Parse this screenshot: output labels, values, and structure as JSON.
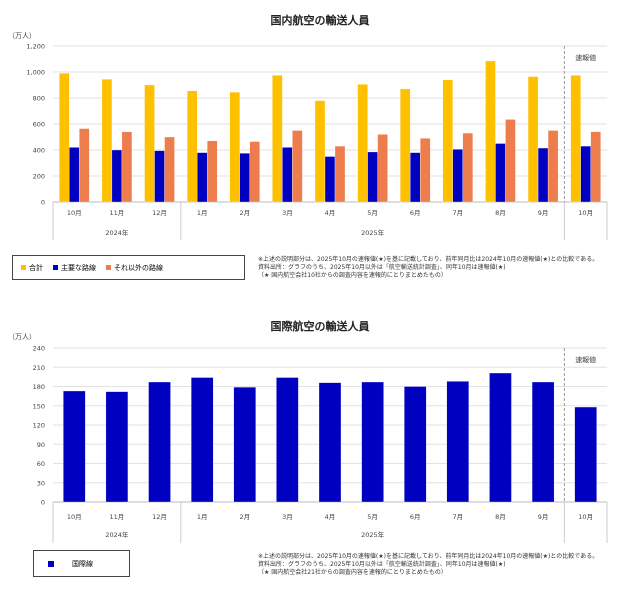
{
  "chart_data": [
    {
      "type": "bar",
      "title": "国内航空の輸送人員",
      "ylabel": "（万人）",
      "ylim": [
        0,
        1200
      ],
      "yticks": [
        "0",
        "200",
        "400",
        "600",
        "800",
        "1,000",
        "1,200"
      ],
      "ytick_values": [
        0,
        200,
        400,
        600,
        800,
        1000,
        1200
      ],
      "categories": [
        "10月",
        "11月",
        "12月",
        "1月",
        "2月",
        "3月",
        "4月",
        "5月",
        "6月",
        "7月",
        "8月",
        "9月",
        "10月"
      ],
      "years": [
        "2024年",
        "2025年"
      ],
      "preliminary_label": "速報値",
      "series": [
        {
          "name": "合計",
          "color": "#FFC000",
          "values": [
            990,
            945,
            900,
            855,
            845,
            975,
            780,
            905,
            870,
            940,
            1085,
            965,
            975
          ]
        },
        {
          "name": "主要な路線",
          "color": "#0000C0",
          "values": [
            420,
            400,
            395,
            380,
            375,
            420,
            350,
            385,
            380,
            405,
            450,
            415,
            430
          ]
        },
        {
          "name": "それ以外の路線",
          "color": "#ED7D4C",
          "values": [
            565,
            540,
            500,
            470,
            465,
            550,
            430,
            520,
            490,
            530,
            635,
            550,
            540
          ]
        }
      ],
      "legend": "bottom-left",
      "notes": [
        "※上述の説明部分は、2025年10月の速報値(★)を基に記載しており、前年同月比は2024年10月の速報値(★)との比較である。",
        "資料出所：グラフのうち、2025年10月以外は「航空輸送統計調査」、同年10月は速報値(★)",
        "（★ 国内航空会社10社からの調査内容を速報的にとりまとめたもの）"
      ]
    },
    {
      "type": "bar",
      "title": "国際航空の輸送人員",
      "ylabel": "（万人）",
      "ylim": [
        0,
        240
      ],
      "yticks": [
        "0",
        "30",
        "60",
        "90",
        "120",
        "150",
        "180",
        "210",
        "240"
      ],
      "ytick_values": [
        0,
        30,
        60,
        90,
        120,
        150,
        180,
        210,
        240
      ],
      "categories": [
        "10月",
        "11月",
        "12月",
        "1月",
        "2月",
        "3月",
        "4月",
        "5月",
        "6月",
        "7月",
        "8月",
        "9月",
        "10月"
      ],
      "years": [
        "2024年",
        "2025年"
      ],
      "preliminary_label": "速報値",
      "series": [
        {
          "name": "国際線",
          "color": "#0000C0",
          "values": [
            173,
            172,
            187,
            194,
            179,
            194,
            186,
            187,
            180,
            188,
            201,
            187,
            148
          ]
        }
      ],
      "legend": "bottom-left",
      "notes": [
        "※上述の説明部分は、2025年10月の速報値(★)を基に記載しており、前年同月比は2024年10月の速報値(★)との比較である。",
        "資料出所：グラフのうち、2025年10月以外は「航空輸送統計調査」、同年10月は速報値(★)",
        "（★ 国内航空会社21社からの調査内容を速報的にとりまとめたもの）"
      ]
    }
  ]
}
